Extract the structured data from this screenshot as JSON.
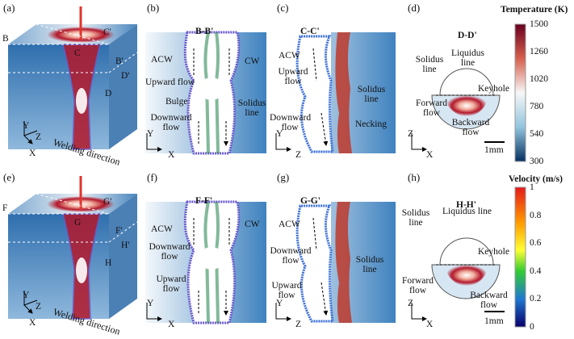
{
  "panels": [
    {
      "label": "(a)",
      "annotations": [
        "B",
        "C'",
        "C",
        "B'",
        "D'",
        "D",
        "Y",
        "Z",
        "X",
        "Welding direction"
      ]
    },
    {
      "label": "(b)",
      "title": "B-B'",
      "annotations": [
        "ACW",
        "CW",
        "Upward flow",
        "Bulge",
        "Solidus line",
        "Downward flow",
        "Y",
        "X"
      ]
    },
    {
      "label": "(c)",
      "title": "C-C'",
      "annotations": [
        "ACW",
        "Upward flow",
        "Solidus line",
        "Necking",
        "Downward flow",
        "Y",
        "Z"
      ]
    },
    {
      "label": "(d)",
      "title": "D-D'",
      "annotations": [
        "Liquidus line",
        "Solidus line",
        "Keyhole",
        "Forward flow",
        "Backward flow",
        "1mm",
        "Z",
        "X"
      ]
    },
    {
      "label": "(e)",
      "annotations": [
        "F",
        "G'",
        "G",
        "F'",
        "H'",
        "H",
        "Y",
        "Z",
        "X",
        "Welding direction"
      ]
    },
    {
      "label": "(f)",
      "title": "F-F'",
      "annotations": [
        "ACW",
        "CW",
        "Downward flow",
        "Upward flow",
        "Y",
        "X"
      ]
    },
    {
      "label": "(g)",
      "title": "G-G'",
      "annotations": [
        "ACW",
        "Downward flow",
        "Upward flow",
        "Solidus line",
        "Y",
        "Z"
      ]
    },
    {
      "label": "(h)",
      "title": "H-H'",
      "annotations": [
        "Solidus line",
        "Liquidus line",
        "Keyhole",
        "Forward flow",
        "Backward flow",
        "1mm",
        "Z",
        "X"
      ]
    }
  ],
  "colorbars": [
    {
      "title": "Temperature (K)",
      "ticks": [
        1500,
        1260,
        1020,
        780,
        540,
        300
      ]
    },
    {
      "title": "Velocity (m/s)",
      "ticks": [
        1,
        0.8,
        0.6,
        0.4,
        0.2,
        0
      ]
    }
  ]
}
